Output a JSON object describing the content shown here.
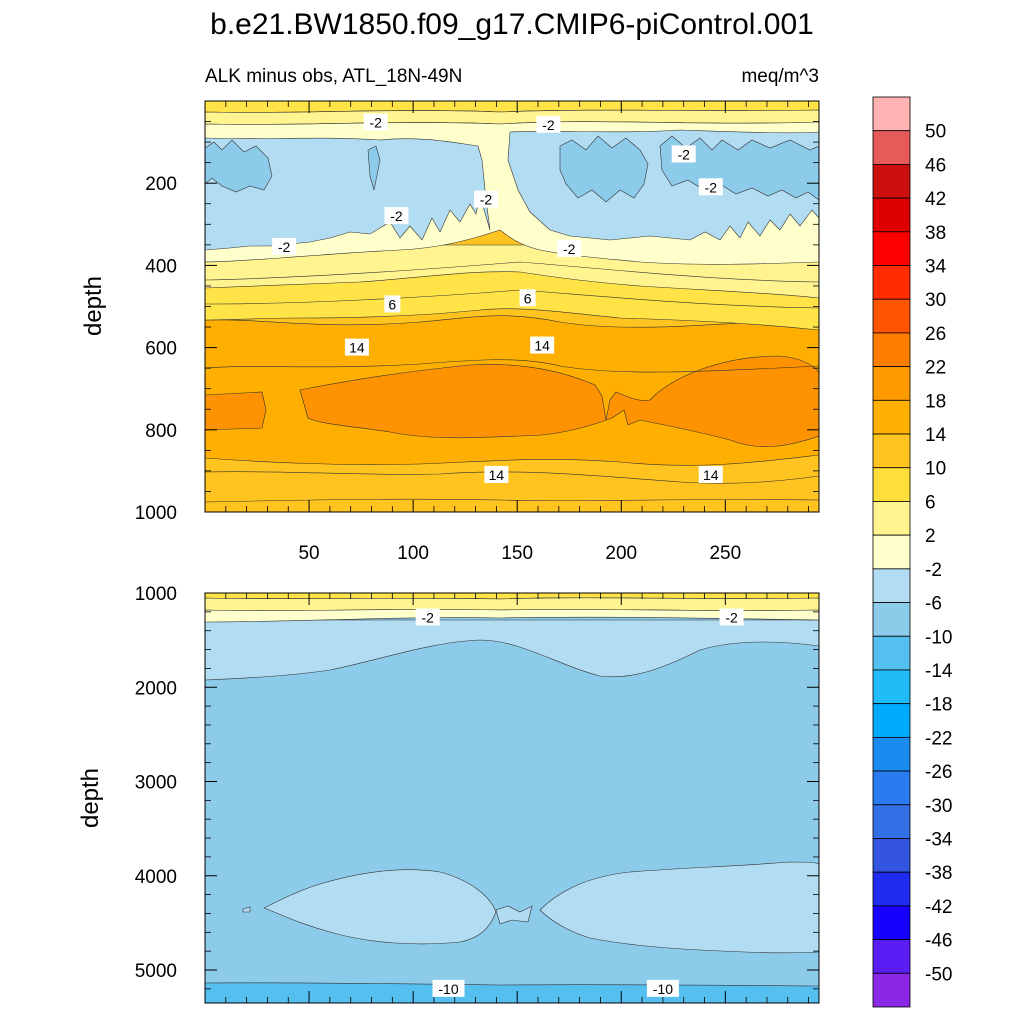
{
  "figure": {
    "title": "b.e21.BW1850.f09_g17.CMIP6-piControl.001"
  },
  "chart_data": [
    {
      "type": "contour",
      "panel": "upper",
      "subtitle_left": "ALK minus obs, ATL_18N-49N",
      "subtitle_right": "meq/m^3",
      "ylabel": "depth",
      "xlabel": "",
      "xlim": [
        0,
        295
      ],
      "ylim": [
        1000,
        0
      ],
      "x_ticks": [
        50,
        100,
        150,
        200,
        250
      ],
      "x_tick_labels": [
        "50",
        "100",
        "150",
        "200",
        "250"
      ],
      "y_ticks": [
        200,
        400,
        600,
        800,
        1000
      ],
      "y_tick_labels": [
        "200",
        "400",
        "600",
        "800",
        "1000"
      ],
      "contour_labels": [
        {
          "text": "-2",
          "x": 82,
          "y": 52
        },
        {
          "text": "-2",
          "x": 165,
          "y": 58
        },
        {
          "text": "-2",
          "x": 230,
          "y": 130
        },
        {
          "text": "-2",
          "x": 243,
          "y": 210
        },
        {
          "text": "-2",
          "x": 92,
          "y": 280
        },
        {
          "text": "-2",
          "x": 135,
          "y": 240
        },
        {
          "text": "-2",
          "x": 38,
          "y": 355
        },
        {
          "text": "-2",
          "x": 175,
          "y": 360
        },
        {
          "text": "6",
          "x": 90,
          "y": 495
        },
        {
          "text": "6",
          "x": 155,
          "y": 480
        },
        {
          "text": "14",
          "x": 73,
          "y": 600
        },
        {
          "text": "14",
          "x": 162,
          "y": 595
        },
        {
          "text": "14",
          "x": 140,
          "y": 910
        },
        {
          "text": "14",
          "x": 243,
          "y": 910
        }
      ],
      "layers": [
        {
          "level": "10 to 14",
          "color": "#ffc41f"
        },
        {
          "level": "14 to 18",
          "color": "#ffaf00"
        },
        {
          "level": "18 to 22",
          "color": "#ff9200"
        },
        {
          "level": "6 to 10",
          "color": "#ffe347"
        },
        {
          "level": "2 to 6",
          "color": "#fff48f"
        },
        {
          "level": "-2 to 2",
          "color": "#ffffcc"
        },
        {
          "level": "-6 to -2",
          "color": "#b2dcf1"
        },
        {
          "level": "-10 to -6",
          "color": "#8dcbeb"
        }
      ]
    },
    {
      "type": "contour",
      "panel": "lower",
      "ylabel": "depth",
      "xlabel": "",
      "xlim": [
        0,
        295
      ],
      "ylim": [
        5350,
        1000
      ],
      "y_ticks": [
        1000,
        2000,
        3000,
        4000,
        5000
      ],
      "y_tick_labels": [
        "1000",
        "2000",
        "3000",
        "4000",
        "5000"
      ],
      "contour_labels": [
        {
          "text": "-2",
          "x": 107,
          "y": 1260
        },
        {
          "text": "-2",
          "x": 253,
          "y": 1260
        },
        {
          "text": "-10",
          "x": 117,
          "y": 5200
        },
        {
          "text": "-10",
          "x": 220,
          "y": 5200
        }
      ],
      "layers": [
        {
          "level": "-10 to -6",
          "color": "#8dcbeb"
        },
        {
          "level": "-6 to -2",
          "color": "#b2dcf1"
        },
        {
          "level": "-14 to -10",
          "color": "#55bff0"
        },
        {
          "level": "2 to 6",
          "color": "#fff48f"
        },
        {
          "level": "6 to 10",
          "color": "#ffe347"
        }
      ]
    }
  ],
  "colorbar": {
    "labels": [
      "50",
      "46",
      "42",
      "38",
      "34",
      "30",
      "26",
      "22",
      "18",
      "14",
      "10",
      "6",
      "2",
      "-2",
      "-6",
      "-10",
      "-14",
      "-18",
      "-22",
      "-26",
      "-30",
      "-34",
      "-38",
      "-42",
      "-46",
      "-50"
    ],
    "colors": [
      "#ffb3b3",
      "#e65a5a",
      "#cc1010",
      "#de0000",
      "#ff0000",
      "#ff2d00",
      "#ff5400",
      "#ff7d00",
      "#ff9a00",
      "#ffb000",
      "#ffc41f",
      "#ffde39",
      "#fff48f",
      "#ffffcc",
      "#b2dcf1",
      "#8dcbeb",
      "#55bff0",
      "#1fbcf7",
      "#00aaff",
      "#1a8cf0",
      "#2a7af0",
      "#3370e6",
      "#3355e0",
      "#1f2cf0",
      "#1800ff",
      "#5a1ef5",
      "#8a28e6"
    ]
  }
}
